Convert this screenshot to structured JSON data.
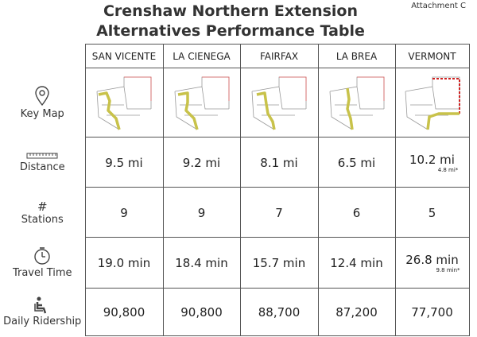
{
  "header": {
    "title": [
      "Crenshaw Northern Extension",
      "Alternatives Performance Table"
    ],
    "attachment": "Attachment C"
  },
  "table": {
    "columns": [
      "SAN VICENTE",
      "LA CIENEGA",
      "FAIRFAX",
      "LA BREA",
      "VERMONT"
    ],
    "rows": [
      {
        "label": "Key Map"
      },
      {
        "label": "Distance",
        "cells": [
          "9.5 mi",
          "9.2 mi",
          "8.1 mi",
          "6.5 mi",
          "10.2 mi"
        ],
        "notes": {
          "4": "4.8 mi*"
        }
      },
      {
        "icon": "#",
        "label": "Stations",
        "cells": [
          "9",
          "9",
          "7",
          "6",
          "5"
        ]
      },
      {
        "label": "Travel Time",
        "cells": [
          "19.0 min",
          "18.4 min",
          "15.7 min",
          "12.4 min",
          "26.8 min"
        ],
        "notes": {
          "4": "9.8 min*"
        }
      },
      {
        "label": "Daily Ridership",
        "cells": [
          "90,800",
          "90,800",
          "88,700",
          "87,200",
          "77,700"
        ]
      }
    ]
  }
}
